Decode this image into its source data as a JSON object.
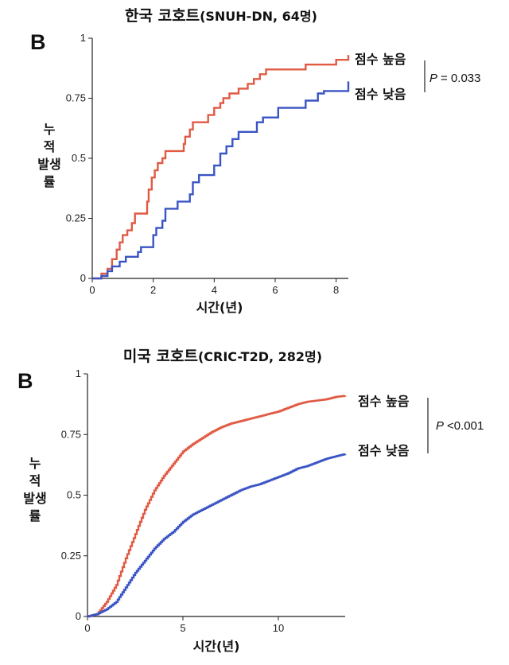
{
  "chart_data": [
    {
      "type": "line",
      "panel_label": "B",
      "title": {
        "main": "한국 코호트",
        "sub": "(SNUH-DN, 64명)"
      },
      "xlabel": "시간(년)",
      "ylabel": "누적 발생률",
      "xlim": [
        0,
        8.4
      ],
      "ylim": [
        0,
        1
      ],
      "xticks": [
        "0",
        "2",
        "4",
        "6",
        "8"
      ],
      "yticks": [
        "0",
        "0.25",
        "0.5",
        "0.75",
        "1"
      ],
      "grid": false,
      "legend_placement": "right",
      "p_label": "P",
      "p_value": "= 0.033",
      "series": [
        {
          "name": "점수 높음",
          "color": "#e05a44",
          "step": true,
          "x": [
            0,
            0.3,
            0.5,
            0.65,
            0.8,
            0.9,
            1.0,
            1.15,
            1.3,
            1.4,
            1.6,
            1.8,
            1.85,
            1.95,
            2.05,
            2.15,
            2.3,
            2.4,
            2.5,
            3.0,
            3.05,
            3.2,
            3.3,
            3.4,
            3.8,
            4.0,
            4.2,
            4.3,
            4.5,
            4.6,
            4.8,
            5.0,
            5.1,
            5.2,
            5.3,
            5.5,
            5.7,
            6.0,
            7.0,
            7.5,
            8.0,
            8.4
          ],
          "y": [
            0,
            0.02,
            0.04,
            0.08,
            0.12,
            0.15,
            0.18,
            0.2,
            0.23,
            0.27,
            0.27,
            0.32,
            0.37,
            0.42,
            0.45,
            0.48,
            0.5,
            0.53,
            0.53,
            0.56,
            0.59,
            0.62,
            0.65,
            0.65,
            0.68,
            0.71,
            0.73,
            0.75,
            0.77,
            0.77,
            0.79,
            0.79,
            0.81,
            0.81,
            0.83,
            0.85,
            0.87,
            0.87,
            0.89,
            0.89,
            0.91,
            0.93
          ]
        },
        {
          "name": "점수 낮음",
          "color": "#3a54c4",
          "step": true,
          "x": [
            0,
            0.3,
            0.5,
            0.65,
            0.9,
            1.1,
            1.3,
            1.5,
            1.6,
            1.8,
            2.0,
            2.1,
            2.3,
            2.4,
            2.8,
            3.0,
            3.2,
            3.3,
            3.5,
            3.9,
            4.0,
            4.2,
            4.4,
            4.6,
            4.8,
            5.2,
            5.4,
            5.6,
            6.0,
            6.1,
            6.5,
            7.0,
            7.4,
            7.6,
            8.4
          ],
          "y": [
            0,
            0.01,
            0.03,
            0.05,
            0.07,
            0.09,
            0.09,
            0.11,
            0.13,
            0.13,
            0.18,
            0.21,
            0.24,
            0.29,
            0.32,
            0.32,
            0.35,
            0.4,
            0.43,
            0.43,
            0.47,
            0.52,
            0.55,
            0.58,
            0.61,
            0.61,
            0.65,
            0.67,
            0.67,
            0.71,
            0.71,
            0.74,
            0.77,
            0.78,
            0.82
          ]
        }
      ]
    },
    {
      "type": "line",
      "panel_label": "B",
      "title": {
        "main": "미국 코호트",
        "sub": "(CRIC-T2D, 282명)"
      },
      "xlabel": "시간(년)",
      "ylabel": "누적 발생률",
      "xlim": [
        0,
        13.5
      ],
      "ylim": [
        0,
        1
      ],
      "xticks": [
        "0",
        "5",
        "10"
      ],
      "yticks": [
        "0",
        "0.25",
        "0.5",
        "0.75",
        "1"
      ],
      "grid": false,
      "legend_placement": "right",
      "p_label": "P",
      "p_value": "<0.001",
      "series": [
        {
          "name": "점수 높음",
          "color": "#e05a44",
          "step": false,
          "x": [
            0,
            0.5,
            1.0,
            1.5,
            2.0,
            2.5,
            3.0,
            3.5,
            4.0,
            4.5,
            5.0,
            5.5,
            6.0,
            6.5,
            7.0,
            7.5,
            8.0,
            8.5,
            9.0,
            9.5,
            10.0,
            10.5,
            11.0,
            11.5,
            12.0,
            12.5,
            13.0,
            13.5
          ],
          "y": [
            0,
            0.01,
            0.06,
            0.13,
            0.24,
            0.34,
            0.44,
            0.52,
            0.58,
            0.63,
            0.68,
            0.71,
            0.735,
            0.76,
            0.78,
            0.795,
            0.805,
            0.815,
            0.825,
            0.835,
            0.845,
            0.86,
            0.875,
            0.885,
            0.89,
            0.895,
            0.905,
            0.91
          ]
        },
        {
          "name": "점수 낮음",
          "color": "#3a54c4",
          "step": false,
          "x": [
            0,
            0.5,
            1.0,
            1.5,
            2.0,
            2.5,
            3.0,
            3.5,
            4.0,
            4.5,
            5.0,
            5.5,
            6.0,
            6.5,
            7.0,
            7.5,
            8.0,
            8.5,
            9.0,
            9.5,
            10.0,
            10.5,
            11.0,
            11.5,
            12.0,
            12.5,
            13.0,
            13.5
          ],
          "y": [
            0,
            0.01,
            0.03,
            0.06,
            0.12,
            0.18,
            0.23,
            0.28,
            0.32,
            0.35,
            0.39,
            0.42,
            0.44,
            0.46,
            0.48,
            0.5,
            0.52,
            0.535,
            0.545,
            0.56,
            0.575,
            0.59,
            0.61,
            0.62,
            0.635,
            0.65,
            0.66,
            0.67
          ]
        }
      ]
    }
  ]
}
